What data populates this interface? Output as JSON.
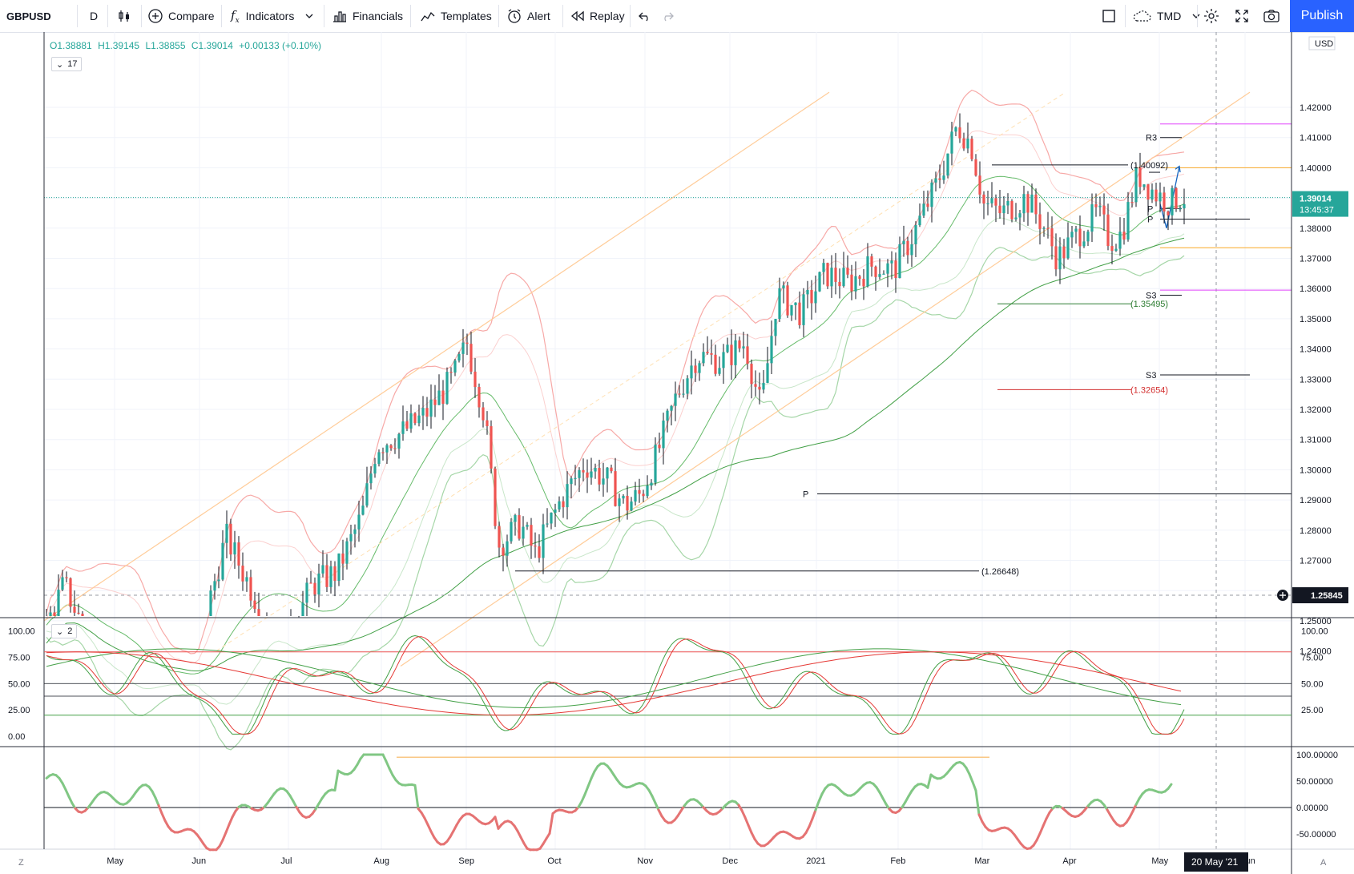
{
  "toolbar": {
    "symbol": "GBPUSD",
    "interval": "D",
    "compare": "Compare",
    "indicators": "Indicators",
    "financials": "Financials",
    "templates": "Templates",
    "alert": "Alert",
    "replay": "Replay",
    "layout_name": "TMD",
    "publish": "Publish"
  },
  "legend": {
    "open": "O1.38881",
    "high": "H1.39145",
    "low": "L1.38855",
    "close": "C1.39014",
    "change": "+0.00133 (+0.10%)",
    "main_pill": "17",
    "stoch_pill": "2"
  },
  "price_axis": {
    "currency": "USD",
    "ticks": [
      "1.42000",
      "1.41000",
      "1.40000",
      "1.39000",
      "1.38000",
      "1.37000",
      "1.36000",
      "1.35000",
      "1.34000",
      "1.33000",
      "1.32000",
      "1.31000",
      "1.30000",
      "1.29000",
      "1.28000",
      "1.27000",
      "1.26000",
      "1.25000",
      "1.24000"
    ],
    "last_price": "1.39014",
    "countdown": "13:45:37",
    "crosshair_price": "1.25845",
    "up_color": "#26a69a",
    "down_color": "#ef5350",
    "accent": "#2962ff"
  },
  "stoch_axis": {
    "ticks": [
      "100.00",
      "75.00",
      "50.00",
      "25.00"
    ],
    "left_ticks": [
      "100.00",
      "75.00",
      "50.00",
      "25.00",
      "0.00"
    ]
  },
  "osc_axis": {
    "ticks": [
      "100.00000",
      "50.00000",
      "0.00000",
      "-50.00000"
    ]
  },
  "time_axis": {
    "labels": [
      "May",
      "Jun",
      "Jul",
      "Aug",
      "Sep",
      "Oct",
      "Nov",
      "Dec",
      "2021",
      "Feb",
      "Mar",
      "Apr",
      "May",
      "Jun"
    ],
    "crosshair_date": "20 May '21",
    "left_button": "Z",
    "right_button": "A"
  },
  "annotations": {
    "r3": "R3",
    "level_14009": "(1.40092)",
    "p1": "P",
    "p2": "P",
    "s3a": "S3",
    "level_13549": "(1.35495)",
    "s3b": "S3",
    "level_13265": "(1.32654)",
    "p_big": "P",
    "level_12664": "(1.26648)"
  },
  "chart_data": {
    "type": "candlestick",
    "symbol": "GBPUSD",
    "interval": "D",
    "x_range": [
      "Apr 2020",
      "May 2021"
    ],
    "ylim": [
      1.235,
      1.425
    ],
    "key_levels": [
      1.40092,
      1.35495,
      1.32654,
      1.26648
    ],
    "last_close": 1.39014,
    "path_points": [
      {
        "date": "Apr 2020",
        "close": 1.248
      },
      {
        "date": "May 2020",
        "close": 1.225
      },
      {
        "date": "Jun 2020",
        "close": 1.268
      },
      {
        "date": "Jul 2020",
        "close": 1.252
      },
      {
        "date": "Aug 2020",
        "close": 1.308
      },
      {
        "date": "Sep 2020",
        "close": 1.342
      },
      {
        "date": "Sep 2020 late",
        "close": 1.272
      },
      {
        "date": "Oct 2020",
        "close": 1.296
      },
      {
        "date": "Nov 2020",
        "close": 1.296
      },
      {
        "date": "Dec 2020",
        "close": 1.338
      },
      {
        "date": "Jan 2021",
        "close": 1.364
      },
      {
        "date": "Feb 2021",
        "close": 1.382
      },
      {
        "date": "Feb 2021 late",
        "close": 1.414
      },
      {
        "date": "Mar 2021",
        "close": 1.388
      },
      {
        "date": "Apr 2021",
        "close": 1.372
      },
      {
        "date": "Apr 2021 late",
        "close": 1.398
      },
      {
        "date": "May 2021",
        "close": 1.39014
      }
    ]
  }
}
